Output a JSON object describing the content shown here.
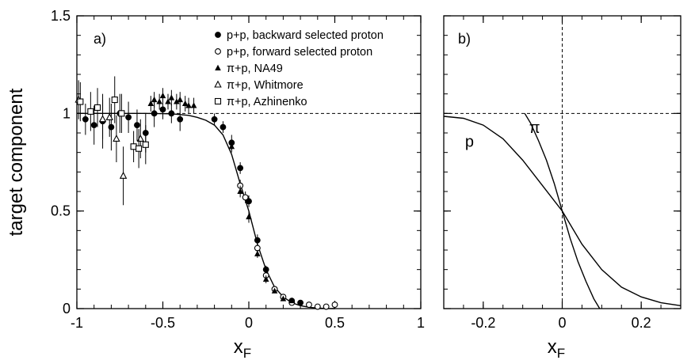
{
  "chart_data": [
    {
      "panel": "a)",
      "type": "scatter",
      "ylabel": "target component",
      "xlabel": "x",
      "xlabel_sub": "F",
      "xlim": [
        -1,
        1
      ],
      "ylim": [
        0,
        1.5
      ],
      "x_ticks": [
        -1,
        -0.5,
        0,
        0.5,
        1
      ],
      "x_tick_labels": [
        "-1",
        "-0.5",
        "0",
        "0.5",
        "1"
      ],
      "y_ticks": [
        0,
        0.5,
        1,
        1.5
      ],
      "y_tick_labels": [
        "0",
        "0.5",
        "1",
        "1.5"
      ],
      "reference_line_y": 1,
      "legend": [
        {
          "marker": "filled-circle",
          "label": "p+p, backward selected proton"
        },
        {
          "marker": "open-circle",
          "label": "p+p, forward selected proton"
        },
        {
          "marker": "filled-triangle",
          "label": "π+p, NA49"
        },
        {
          "marker": "open-triangle",
          "label": "π+p, Whitmore"
        },
        {
          "marker": "open-square",
          "label": "π+p, Azhinenko"
        }
      ],
      "fit_curve": {
        "name": "fit",
        "x": [
          -1.0,
          -0.6,
          -0.45,
          -0.35,
          -0.3,
          -0.25,
          -0.2,
          -0.15,
          -0.1,
          -0.05,
          0.0,
          0.05,
          0.1,
          0.15,
          0.2,
          0.25,
          0.3,
          0.35,
          0.4,
          0.45,
          0.5
        ],
        "y": [
          1.0,
          1.0,
          0.998,
          0.99,
          0.98,
          0.965,
          0.94,
          0.89,
          0.79,
          0.64,
          0.5,
          0.33,
          0.2,
          0.11,
          0.06,
          0.03,
          0.015,
          0.007,
          0.003,
          0.001,
          0.0
        ]
      },
      "series": [
        {
          "name": "p+p, backward selected proton",
          "marker": "filled-circle",
          "points": [
            {
              "x": -0.95,
              "y": 0.97,
              "err": 0.08
            },
            {
              "x": -0.9,
              "y": 0.94,
              "err": 0.1
            },
            {
              "x": -0.85,
              "y": 0.96,
              "err": 0.14
            },
            {
              "x": -0.8,
              "y": 0.93,
              "err": 0.12
            },
            {
              "x": -0.75,
              "y": 1.0,
              "err": 0.1
            },
            {
              "x": -0.7,
              "y": 0.98,
              "err": 0.08
            },
            {
              "x": -0.65,
              "y": 0.94,
              "err": 0.08
            },
            {
              "x": -0.6,
              "y": 0.9,
              "err": 0.1
            },
            {
              "x": -0.55,
              "y": 1.0,
              "err": 0.07
            },
            {
              "x": -0.5,
              "y": 1.02,
              "err": 0.05
            },
            {
              "x": -0.45,
              "y": 1.0,
              "err": 0.05
            },
            {
              "x": -0.4,
              "y": 0.97,
              "err": 0.06
            },
            {
              "x": -0.2,
              "y": 0.97,
              "err": 0.03
            },
            {
              "x": -0.15,
              "y": 0.93,
              "err": 0.03
            },
            {
              "x": -0.1,
              "y": 0.85,
              "err": 0.04
            },
            {
              "x": -0.05,
              "y": 0.72,
              "err": 0.03
            },
            {
              "x": 0.0,
              "y": 0.55,
              "err": 0.03
            },
            {
              "x": 0.05,
              "y": 0.35,
              "err": 0.03
            },
            {
              "x": 0.1,
              "y": 0.2,
              "err": 0.02
            },
            {
              "x": 0.25,
              "y": 0.04,
              "err": 0.01
            },
            {
              "x": 0.3,
              "y": 0.03,
              "err": 0.01
            }
          ]
        },
        {
          "name": "p+p, forward selected proton",
          "marker": "open-circle",
          "points": [
            {
              "x": -0.05,
              "y": 0.63,
              "err": 0.03
            },
            {
              "x": -0.02,
              "y": 0.57,
              "err": 0.03
            },
            {
              "x": 0.05,
              "y": 0.31,
              "err": 0.02
            },
            {
              "x": 0.1,
              "y": 0.17,
              "err": 0.02
            },
            {
              "x": 0.15,
              "y": 0.1,
              "err": 0.01
            },
            {
              "x": 0.2,
              "y": 0.06,
              "err": 0.01
            },
            {
              "x": 0.25,
              "y": 0.03,
              "err": 0.01
            },
            {
              "x": 0.35,
              "y": 0.02,
              "err": 0.01
            },
            {
              "x": 0.4,
              "y": 0.01,
              "err": 0.01
            },
            {
              "x": 0.45,
              "y": 0.01,
              "err": 0.01
            },
            {
              "x": 0.5,
              "y": 0.02,
              "err": 0.02
            }
          ]
        },
        {
          "name": "π+p, NA49",
          "marker": "filled-triangle",
          "points": [
            {
              "x": -0.57,
              "y": 1.05,
              "err": 0.04
            },
            {
              "x": -0.55,
              "y": 1.07,
              "err": 0.04
            },
            {
              "x": -0.52,
              "y": 1.06,
              "err": 0.04
            },
            {
              "x": -0.5,
              "y": 1.09,
              "err": 0.04
            },
            {
              "x": -0.47,
              "y": 1.06,
              "err": 0.04
            },
            {
              "x": -0.45,
              "y": 1.08,
              "err": 0.04
            },
            {
              "x": -0.42,
              "y": 1.06,
              "err": 0.04
            },
            {
              "x": -0.4,
              "y": 1.07,
              "err": 0.04
            },
            {
              "x": -0.37,
              "y": 1.05,
              "err": 0.04
            },
            {
              "x": -0.35,
              "y": 1.04,
              "err": 0.04
            },
            {
              "x": -0.32,
              "y": 1.04,
              "err": 0.04
            },
            {
              "x": -0.1,
              "y": 0.83,
              "err": 0.03
            },
            {
              "x": -0.05,
              "y": 0.6,
              "err": 0.03
            },
            {
              "x": 0.0,
              "y": 0.47,
              "err": 0.03
            },
            {
              "x": 0.05,
              "y": 0.28,
              "err": 0.02
            },
            {
              "x": 0.1,
              "y": 0.15,
              "err": 0.02
            },
            {
              "x": 0.15,
              "y": 0.09,
              "err": 0.01
            },
            {
              "x": 0.2,
              "y": 0.05,
              "err": 0.01
            },
            {
              "x": 0.25,
              "y": 0.04,
              "err": 0.01
            }
          ]
        },
        {
          "name": "π+p, Whitmore",
          "marker": "open-triangle",
          "points": [
            {
              "x": -0.99,
              "y": 1.07,
              "err": 0.1
            },
            {
              "x": -0.85,
              "y": 0.97,
              "err": 0.1
            },
            {
              "x": -0.81,
              "y": 0.98,
              "err": 0.1
            },
            {
              "x": -0.77,
              "y": 0.87,
              "err": 0.12
            },
            {
              "x": -0.73,
              "y": 0.68,
              "err": 0.15
            },
            {
              "x": -0.63,
              "y": 0.87,
              "err": 0.1
            }
          ]
        },
        {
          "name": "π+p, Azhinenko",
          "marker": "open-square",
          "points": [
            {
              "x": -0.98,
              "y": 1.06,
              "err": 0.1
            },
            {
              "x": -0.92,
              "y": 1.01,
              "err": 0.1
            },
            {
              "x": -0.88,
              "y": 1.03,
              "err": 0.1
            },
            {
              "x": -0.78,
              "y": 1.07,
              "err": 0.12
            },
            {
              "x": -0.74,
              "y": 1.0,
              "err": 0.1
            },
            {
              "x": -0.67,
              "y": 0.83,
              "err": 0.08
            },
            {
              "x": -0.64,
              "y": 0.82,
              "err": 0.1
            },
            {
              "x": -0.6,
              "y": 0.84,
              "err": 0.1
            }
          ]
        }
      ]
    },
    {
      "panel": "b)",
      "type": "line",
      "xlabel": "x",
      "xlabel_sub": "F",
      "xlim": [
        -0.3,
        0.3
      ],
      "ylim": [
        0,
        1.5
      ],
      "x_ticks": [
        -0.2,
        0,
        0.2
      ],
      "x_tick_labels": [
        "-0.2",
        "0",
        "0.2"
      ],
      "reference_line_y": 1,
      "reference_line_x": 0,
      "series": [
        {
          "name": "p",
          "label": "p",
          "x": [
            -0.3,
            -0.25,
            -0.2,
            -0.15,
            -0.1,
            -0.05,
            0.0,
            0.05,
            0.1,
            0.15,
            0.2,
            0.25,
            0.3
          ],
          "y": [
            0.985,
            0.975,
            0.94,
            0.87,
            0.76,
            0.63,
            0.5,
            0.33,
            0.2,
            0.11,
            0.06,
            0.03,
            0.015
          ]
        },
        {
          "name": "π",
          "label": "π",
          "x": [
            -0.095,
            -0.08,
            -0.06,
            -0.04,
            -0.02,
            0.0,
            0.02,
            0.04,
            0.06,
            0.08,
            0.095
          ],
          "y": [
            1.0,
            0.95,
            0.86,
            0.76,
            0.64,
            0.5,
            0.36,
            0.24,
            0.14,
            0.05,
            0.0
          ]
        }
      ]
    }
  ]
}
